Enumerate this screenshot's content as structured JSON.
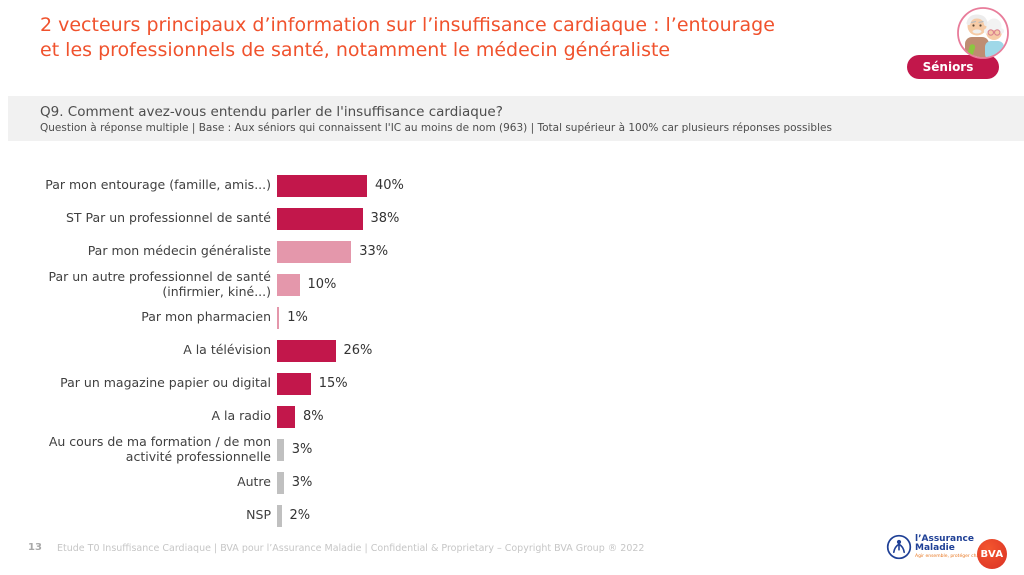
{
  "title": {
    "line1": "2 vecteurs principaux d’information sur l’insuffisance cardiaque : l’entourage",
    "line2": "et les professionnels de santé, notamment le médecin généraliste",
    "color": "#F0522D"
  },
  "badge": {
    "label": "Séniors",
    "color": "#C2174B"
  },
  "question": {
    "heading": "Q9. Comment avez-vous entendu parler de l'insuffisance cardiaque?",
    "base": "Question à réponse multiple | Base : Aux séniors qui connaissent l'IC au moins de nom (963) | Total supérieur à 100% car plusieurs réponses possibles"
  },
  "chart_data": {
    "type": "bar",
    "orientation": "horizontal",
    "categories": [
      "Par mon entourage (famille, amis...)",
      "ST Par un professionnel de santé",
      "Par mon médecin généraliste",
      "Par un autre professionnel de santé (infirmier, kiné...)",
      "Par mon pharmacien",
      "A la télévision",
      "Par un magazine papier ou digital",
      "A la radio",
      "Au cours de ma formation / de mon activité professionnelle",
      "Autre",
      "NSP"
    ],
    "values": [
      40,
      38,
      33,
      10,
      1,
      26,
      15,
      8,
      3,
      3,
      2
    ],
    "value_suffix": "%",
    "bar_colors": [
      "#C2174B",
      "#C2174B",
      "#E497AB",
      "#E497AB",
      "#E497AB",
      "#C2174B",
      "#C2174B",
      "#C2174B",
      "#C0C0C0",
      "#C0C0C0",
      "#C0C0C0"
    ],
    "palette": {
      "dark_crimson": "#C2174B",
      "light_pink": "#E497AB",
      "gray": "#C0C0C0"
    },
    "xlim": [
      0,
      100
    ],
    "grid": false,
    "legend": false,
    "value_labels": true
  },
  "footer": {
    "page_number": "13",
    "text": "Etude T0 Insuffisance Cardiaque | BVA pour l’Assurance Maladie | Confidential & Proprietary – Copyright BVA Group ®  2022"
  },
  "logos": {
    "assurance_maladie": {
      "line1": "l’Assurance",
      "line2": "Maladie",
      "tagline": "Agir ensemble, protéger chacun"
    },
    "bva": {
      "label": "BVA"
    }
  }
}
